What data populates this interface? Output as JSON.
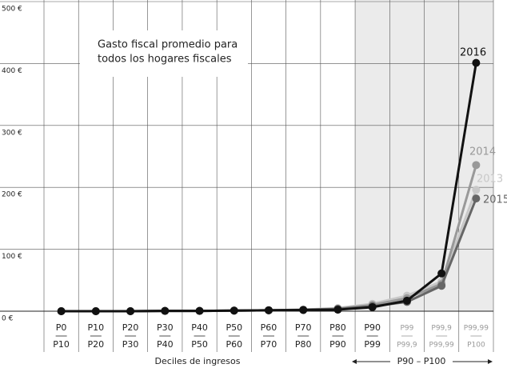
{
  "chart_data": {
    "type": "line",
    "title": [
      "Gasto fiscal promedio para",
      "todos los hogares fiscales"
    ],
    "x_label": "Deciles de ingresos",
    "range_annotation": "P90 – P100",
    "categories": [
      [
        "P0",
        "P10"
      ],
      [
        "P10",
        "P20"
      ],
      [
        "P20",
        "P30"
      ],
      [
        "P30",
        "P40"
      ],
      [
        "P40",
        "P50"
      ],
      [
        "P50",
        "P60"
      ],
      [
        "P60",
        "P70"
      ],
      [
        "P70",
        "P80"
      ],
      [
        "P80",
        "P90"
      ],
      [
        "P90",
        "P99"
      ],
      [
        "P99",
        "P99,9"
      ],
      [
        "P99,9",
        "P99,99"
      ],
      [
        "P99,99",
        "P100"
      ]
    ],
    "series": [
      {
        "name": "2013",
        "color": "#c8c8c8",
        "values": [
          0,
          0,
          0,
          0.5,
          0.5,
          1,
          1.5,
          2.5,
          5,
          12,
          25,
          48,
          196
        ]
      },
      {
        "name": "2014",
        "color": "#999999",
        "values": [
          0,
          0,
          0,
          0.5,
          0.5,
          1,
          1.5,
          2.5,
          4,
          10,
          21,
          44,
          236
        ]
      },
      {
        "name": "2015",
        "color": "#666666",
        "values": [
          0,
          0,
          0,
          0.5,
          0.5,
          1,
          1.5,
          2,
          3.5,
          8,
          15,
          41,
          182
        ]
      },
      {
        "name": "2016",
        "color": "#111111",
        "values": [
          0,
          0,
          0,
          0.5,
          0.5,
          1,
          1.5,
          2,
          2.5,
          6.5,
          17,
          61,
          401
        ]
      }
    ],
    "ylim": [
      0,
      500
    ],
    "yticks": [
      {
        "value": 0,
        "label": "0 €"
      },
      {
        "value": 100,
        "label": "100 €"
      },
      {
        "value": 200,
        "label": "200 €"
      },
      {
        "value": 300,
        "label": "300 €"
      },
      {
        "value": 400,
        "label": "400 €"
      },
      {
        "value": 500,
        "label": "500 €"
      }
    ],
    "grid": true
  }
}
